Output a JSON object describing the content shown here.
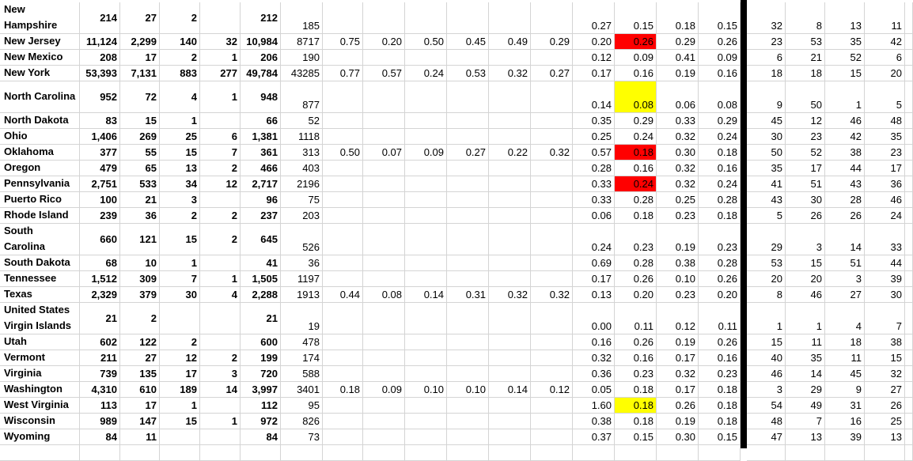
{
  "highlight_colors": {
    "red": "#ff0000",
    "yellow": "#ffff00"
  },
  "rows": [
    {
      "name": "New Hampshire",
      "c": [
        "214",
        "27",
        "2",
        "",
        "212",
        "185",
        "",
        "",
        "",
        "",
        "",
        "",
        "0.27",
        "0.15",
        "0.18",
        "0.15",
        "32",
        "8",
        "13",
        "11"
      ],
      "tall": true
    },
    {
      "name": "New Jersey",
      "c": [
        "11,124",
        "2,299",
        "140",
        "32",
        "10,984",
        "8717",
        "0.75",
        "0.20",
        "0.50",
        "0.45",
        "0.49",
        "0.29",
        "0.20",
        "0.26",
        "0.29",
        "0.26",
        "23",
        "53",
        "35",
        "42"
      ],
      "fill": "red"
    },
    {
      "name": "New Mexico",
      "c": [
        "208",
        "17",
        "2",
        "1",
        "206",
        "190",
        "",
        "",
        "",
        "",
        "",
        "",
        "0.12",
        "0.09",
        "0.41",
        "0.09",
        "6",
        "21",
        "52",
        "6"
      ]
    },
    {
      "name": "New York",
      "c": [
        "53,393",
        "7,131",
        "883",
        "277",
        "49,784",
        "43285",
        "0.77",
        "0.57",
        "0.24",
        "0.53",
        "0.32",
        "0.27",
        "0.17",
        "0.16",
        "0.19",
        "0.16",
        "18",
        "18",
        "15",
        "20"
      ]
    },
    {
      "name": "North Carolina",
      "c": [
        "952",
        "72",
        "4",
        "1",
        "948",
        "877",
        "",
        "",
        "",
        "",
        "",
        "",
        "0.14",
        "0.08",
        "0.06",
        "0.08",
        "9",
        "50",
        "1",
        "5"
      ],
      "tall": true,
      "fill": "yellow"
    },
    {
      "name": "North Dakota",
      "c": [
        "83",
        "15",
        "1",
        "",
        "66",
        "52",
        "",
        "",
        "",
        "",
        "",
        "",
        "0.35",
        "0.29",
        "0.33",
        "0.29",
        "45",
        "12",
        "46",
        "48"
      ]
    },
    {
      "name": "Ohio",
      "c": [
        "1,406",
        "269",
        "25",
        "6",
        "1,381",
        "1118",
        "",
        "",
        "",
        "",
        "",
        "",
        "0.25",
        "0.24",
        "0.32",
        "0.24",
        "30",
        "23",
        "42",
        "35"
      ]
    },
    {
      "name": "Oklahoma",
      "c": [
        "377",
        "55",
        "15",
        "7",
        "361",
        "313",
        "0.50",
        "0.07",
        "0.09",
        "0.27",
        "0.22",
        "0.32",
        "0.57",
        "0.18",
        "0.30",
        "0.18",
        "50",
        "52",
        "38",
        "23"
      ],
      "fill": "red"
    },
    {
      "name": "Oregon",
      "c": [
        "479",
        "65",
        "13",
        "2",
        "466",
        "403",
        "",
        "",
        "",
        "",
        "",
        "",
        "0.28",
        "0.16",
        "0.32",
        "0.16",
        "35",
        "17",
        "44",
        "17"
      ]
    },
    {
      "name": "Pennsylvania",
      "c": [
        "2,751",
        "533",
        "34",
        "12",
        "2,717",
        "2196",
        "",
        "",
        "",
        "",
        "",
        "",
        "0.33",
        "0.24",
        "0.32",
        "0.24",
        "41",
        "51",
        "43",
        "36"
      ],
      "fill": "red"
    },
    {
      "name": "Puerto Rico",
      "c": [
        "100",
        "21",
        "3",
        "",
        "96",
        "75",
        "",
        "",
        "",
        "",
        "",
        "",
        "0.33",
        "0.28",
        "0.25",
        "0.28",
        "43",
        "30",
        "28",
        "46"
      ]
    },
    {
      "name": "Rhode Island",
      "c": [
        "239",
        "36",
        "2",
        "2",
        "237",
        "203",
        "",
        "",
        "",
        "",
        "",
        "",
        "0.06",
        "0.18",
        "0.23",
        "0.18",
        "5",
        "26",
        "26",
        "24"
      ]
    },
    {
      "name": "South Carolina",
      "c": [
        "660",
        "121",
        "15",
        "2",
        "645",
        "526",
        "",
        "",
        "",
        "",
        "",
        "",
        "0.24",
        "0.23",
        "0.19",
        "0.23",
        "29",
        "3",
        "14",
        "33"
      ],
      "tall": true
    },
    {
      "name": "South Dakota",
      "c": [
        "68",
        "10",
        "1",
        "",
        "41",
        "36",
        "",
        "",
        "",
        "",
        "",
        "",
        "0.69",
        "0.28",
        "0.38",
        "0.28",
        "53",
        "15",
        "51",
        "44"
      ]
    },
    {
      "name": "Tennessee",
      "c": [
        "1,512",
        "309",
        "7",
        "1",
        "1,505",
        "1197",
        "",
        "",
        "",
        "",
        "",
        "",
        "0.17",
        "0.26",
        "0.10",
        "0.26",
        "20",
        "20",
        "3",
        "39"
      ]
    },
    {
      "name": "Texas",
      "c": [
        "2,329",
        "379",
        "30",
        "4",
        "2,288",
        "1913",
        "0.44",
        "0.08",
        "0.14",
        "0.31",
        "0.32",
        "0.32",
        "0.13",
        "0.20",
        "0.23",
        "0.20",
        "8",
        "46",
        "27",
        "30"
      ]
    },
    {
      "name": "United States Virgin Islands",
      "c": [
        "21",
        "2",
        "",
        "",
        "21",
        "19",
        "",
        "",
        "",
        "",
        "",
        "",
        "0.00",
        "0.11",
        "0.12",
        "0.11",
        "1",
        "1",
        "4",
        "7"
      ],
      "tall": true
    },
    {
      "name": "Utah",
      "c": [
        "602",
        "122",
        "2",
        "",
        "600",
        "478",
        "",
        "",
        "",
        "",
        "",
        "",
        "0.16",
        "0.26",
        "0.19",
        "0.26",
        "15",
        "11",
        "18",
        "38"
      ]
    },
    {
      "name": "Vermont",
      "c": [
        "211",
        "27",
        "12",
        "2",
        "199",
        "174",
        "",
        "",
        "",
        "",
        "",
        "",
        "0.32",
        "0.16",
        "0.17",
        "0.16",
        "40",
        "35",
        "11",
        "15"
      ]
    },
    {
      "name": "Virginia",
      "c": [
        "739",
        "135",
        "17",
        "3",
        "720",
        "588",
        "",
        "",
        "",
        "",
        "",
        "",
        "0.36",
        "0.23",
        "0.32",
        "0.23",
        "46",
        "14",
        "45",
        "32"
      ]
    },
    {
      "name": "Washington",
      "c": [
        "4,310",
        "610",
        "189",
        "14",
        "3,997",
        "3401",
        "0.18",
        "0.09",
        "0.10",
        "0.10",
        "0.14",
        "0.12",
        "0.05",
        "0.18",
        "0.17",
        "0.18",
        "3",
        "29",
        "9",
        "27"
      ]
    },
    {
      "name": "West Virginia",
      "c": [
        "113",
        "17",
        "1",
        "",
        "112",
        "95",
        "",
        "",
        "",
        "",
        "",
        "",
        "1.60",
        "0.18",
        "0.26",
        "0.18",
        "54",
        "49",
        "31",
        "26"
      ],
      "fill": "yellow"
    },
    {
      "name": "Wisconsin",
      "c": [
        "989",
        "147",
        "15",
        "1",
        "972",
        "826",
        "",
        "",
        "",
        "",
        "",
        "",
        "0.38",
        "0.18",
        "0.19",
        "0.18",
        "48",
        "7",
        "16",
        "25"
      ]
    },
    {
      "name": "Wyoming",
      "c": [
        "84",
        "11",
        "",
        "",
        "84",
        "73",
        "",
        "",
        "",
        "",
        "",
        "",
        "0.37",
        "0.15",
        "0.30",
        "0.15",
        "47",
        "13",
        "39",
        "13"
      ]
    }
  ]
}
